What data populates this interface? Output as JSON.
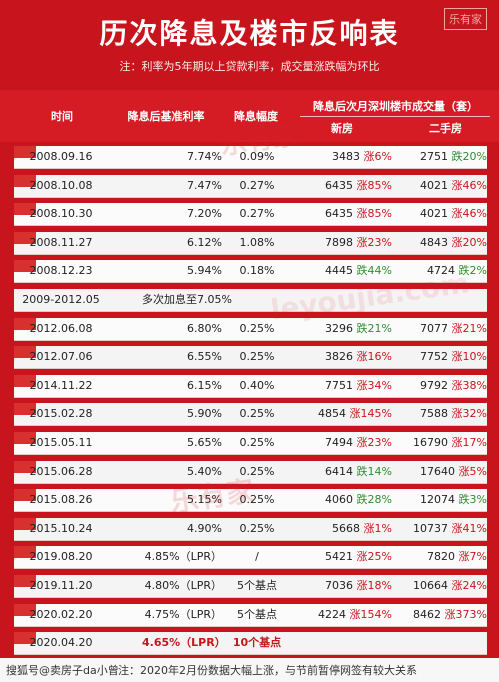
{
  "header": {
    "title": "历次降息及楼市反响表",
    "note": "注：利率为5年期以上贷款利率，成交量涨跌幅为环比",
    "logo": "乐有家"
  },
  "columns": {
    "time": "时间",
    "rate": "降息后基准利率",
    "delta": "降息幅度",
    "volume": "降息后次月深圳楼市成交量（套）",
    "new": "新房",
    "used": "二手房"
  },
  "rows": [
    {
      "time": "2008.09.16",
      "rate": "7.74%",
      "delta": "0.09%",
      "new_count": "3483",
      "new_change": "涨6%",
      "new_dir": "up",
      "used_count": "2751",
      "used_change": "跌20%",
      "used_dir": "down"
    },
    {
      "time": "2008.10.08",
      "rate": "7.47%",
      "delta": "0.27%",
      "new_count": "6435",
      "new_change": "涨85%",
      "new_dir": "up",
      "used_count": "4021",
      "used_change": "涨46%",
      "used_dir": "up"
    },
    {
      "time": "2008.10.30",
      "rate": "7.20%",
      "delta": "0.27%",
      "new_count": "6435",
      "new_change": "涨85%",
      "new_dir": "up",
      "used_count": "4021",
      "used_change": "涨46%",
      "used_dir": "up"
    },
    {
      "time": "2008.11.27",
      "rate": "6.12%",
      "delta": "1.08%",
      "new_count": "7898",
      "new_change": "涨23%",
      "new_dir": "up",
      "used_count": "4843",
      "used_change": "涨20%",
      "used_dir": "up"
    },
    {
      "time": "2008.12.23",
      "rate": "5.94%",
      "delta": "0.18%",
      "new_count": "4445",
      "new_change": "跌44%",
      "new_dir": "down",
      "used_count": "4724",
      "used_change": "跌2%",
      "used_dir": "down"
    },
    {
      "time": "2009-2012.05",
      "note": "多次加息至7.05%"
    },
    {
      "time": "2012.06.08",
      "rate": "6.80%",
      "delta": "0.25%",
      "new_count": "3296",
      "new_change": "跌21%",
      "new_dir": "down",
      "used_count": "7077",
      "used_change": "涨21%",
      "used_dir": "up"
    },
    {
      "time": "2012.07.06",
      "rate": "6.55%",
      "delta": "0.25%",
      "new_count": "3826",
      "new_change": "涨16%",
      "new_dir": "up",
      "used_count": "7752",
      "used_change": "涨10%",
      "used_dir": "up"
    },
    {
      "time": "2014.11.22",
      "rate": "6.15%",
      "delta": "0.40%",
      "new_count": "7751",
      "new_change": "涨34%",
      "new_dir": "up",
      "used_count": "9792",
      "used_change": "涨38%",
      "used_dir": "up"
    },
    {
      "time": "2015.02.28",
      "rate": "5.90%",
      "delta": "0.25%",
      "new_count": "4854",
      "new_change": "涨145%",
      "new_dir": "up",
      "used_count": "7588",
      "used_change": "涨32%",
      "used_dir": "up"
    },
    {
      "time": "2015.05.11",
      "rate": "5.65%",
      "delta": "0.25%",
      "new_count": "7494",
      "new_change": "涨23%",
      "new_dir": "up",
      "used_count": "16790",
      "used_change": "涨17%",
      "used_dir": "up"
    },
    {
      "time": "2015.06.28",
      "rate": "5.40%",
      "delta": "0.25%",
      "new_count": "6414",
      "new_change": "跌14%",
      "new_dir": "down",
      "used_count": "17640",
      "used_change": "涨5%",
      "used_dir": "up"
    },
    {
      "time": "2015.08.26",
      "rate": "5.15%",
      "delta": "0.25%",
      "new_count": "4060",
      "new_change": "跌28%",
      "new_dir": "down",
      "used_count": "12074",
      "used_change": "跌3%",
      "used_dir": "down"
    },
    {
      "time": "2015.10.24",
      "rate": "4.90%",
      "delta": "0.25%",
      "new_count": "5668",
      "new_change": "涨1%",
      "new_dir": "up",
      "used_count": "10737",
      "used_change": "涨41%",
      "used_dir": "up"
    },
    {
      "time": "2019.08.20",
      "rate": "4.85%（LPR）",
      "delta": "/",
      "new_count": "5421",
      "new_change": "涨25%",
      "new_dir": "up",
      "used_count": "7820",
      "used_change": "涨7%",
      "used_dir": "up"
    },
    {
      "time": "2019.11.20",
      "rate": "4.80%（LPR）",
      "delta": "5个基点",
      "new_count": "7036",
      "new_change": "涨18%",
      "new_dir": "up",
      "used_count": "10664",
      "used_change": "涨24%",
      "used_dir": "up"
    },
    {
      "time": "2020.02.20",
      "rate": "4.75%（LPR）",
      "delta": "5个基点",
      "new_count": "4224",
      "new_change": "涨154%",
      "new_dir": "up",
      "used_count": "8462",
      "used_change": "涨373%",
      "used_dir": "up"
    },
    {
      "time": "2020.04.20",
      "rate": "4.65%（LPR）",
      "delta": "10个基点",
      "highlight": true
    }
  ],
  "footer": {
    "signature": "搜狐号@卖房子da小曾",
    "note": "注：2020年2月份数据大幅上涨，与节前暂停网签有较大关系"
  },
  "watermark": {
    "mark": "乐有家",
    "url": "leyoujia.com"
  },
  "colors": {
    "brand_red": "#c8151d",
    "up": "#c8151d",
    "down": "#2f8d2f"
  }
}
